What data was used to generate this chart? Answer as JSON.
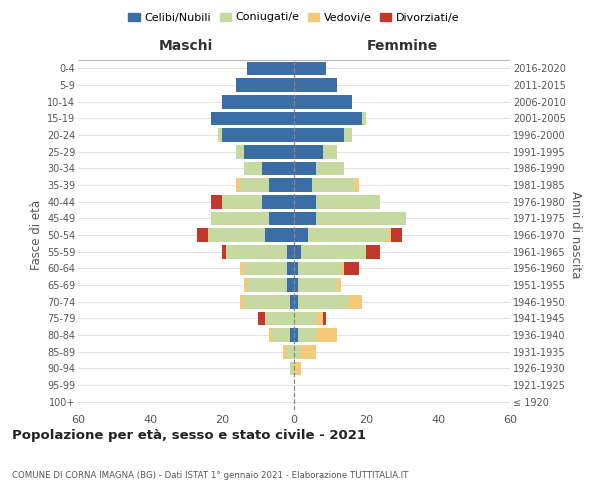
{
  "age_groups": [
    "100+",
    "95-99",
    "90-94",
    "85-89",
    "80-84",
    "75-79",
    "70-74",
    "65-69",
    "60-64",
    "55-59",
    "50-54",
    "45-49",
    "40-44",
    "35-39",
    "30-34",
    "25-29",
    "20-24",
    "15-19",
    "10-14",
    "5-9",
    "0-4"
  ],
  "birth_years": [
    "≤ 1920",
    "1921-1925",
    "1926-1930",
    "1931-1935",
    "1936-1940",
    "1941-1945",
    "1946-1950",
    "1951-1955",
    "1956-1960",
    "1961-1965",
    "1966-1970",
    "1971-1975",
    "1976-1980",
    "1981-1985",
    "1986-1990",
    "1991-1995",
    "1996-2000",
    "2001-2005",
    "2006-2010",
    "2011-2015",
    "2016-2020"
  ],
  "maschi": {
    "celibi": [
      0,
      0,
      0,
      0,
      1,
      0,
      1,
      2,
      2,
      2,
      8,
      7,
      9,
      7,
      9,
      14,
      20,
      23,
      20,
      16,
      13
    ],
    "coniugati": [
      0,
      0,
      1,
      2,
      5,
      8,
      13,
      11,
      12,
      17,
      16,
      16,
      11,
      8,
      5,
      2,
      1,
      0,
      0,
      0,
      0
    ],
    "vedovi": [
      0,
      0,
      0,
      1,
      1,
      0,
      1,
      1,
      1,
      0,
      0,
      0,
      0,
      1,
      0,
      0,
      0,
      0,
      0,
      0,
      0
    ],
    "divorziati": [
      0,
      0,
      0,
      0,
      0,
      2,
      0,
      0,
      0,
      1,
      3,
      0,
      3,
      0,
      0,
      0,
      0,
      0,
      0,
      0,
      0
    ]
  },
  "femmine": {
    "nubili": [
      0,
      0,
      0,
      0,
      1,
      0,
      1,
      1,
      1,
      2,
      4,
      6,
      6,
      5,
      6,
      8,
      14,
      19,
      16,
      12,
      9
    ],
    "coniugate": [
      0,
      0,
      0,
      2,
      5,
      6,
      14,
      11,
      12,
      18,
      22,
      25,
      18,
      12,
      8,
      4,
      2,
      1,
      0,
      0,
      0
    ],
    "vedove": [
      0,
      0,
      2,
      4,
      6,
      2,
      4,
      1,
      1,
      0,
      1,
      0,
      0,
      1,
      0,
      0,
      0,
      0,
      0,
      0,
      0
    ],
    "divorziate": [
      0,
      0,
      0,
      0,
      0,
      1,
      0,
      0,
      4,
      4,
      3,
      0,
      0,
      0,
      0,
      0,
      0,
      0,
      0,
      0,
      0
    ]
  },
  "colors": {
    "celibi": "#3C6EA6",
    "coniugati": "#C5D9A0",
    "vedovi": "#F5C97A",
    "divorziati": "#C0392B"
  },
  "xlim": 60,
  "title": "Popolazione per età, sesso e stato civile - 2021",
  "subtitle": "COMUNE DI CORNA IMAGNA (BG) - Dati ISTAT 1° gennaio 2021 - Elaborazione TUTTITALIA.IT",
  "ylabel_left": "Fasce di età",
  "ylabel_right": "Anni di nascita",
  "xlabel_left": "Maschi",
  "xlabel_right": "Femmine"
}
